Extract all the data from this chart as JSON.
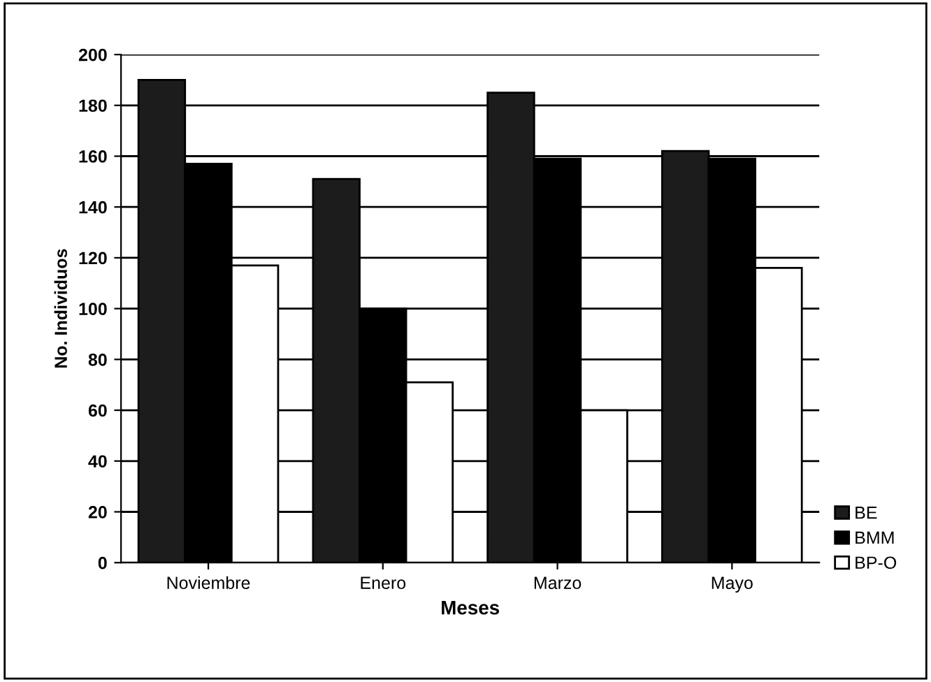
{
  "chart_data": {
    "type": "bar",
    "xlabel": "Meses",
    "ylabel": "No. Individuos",
    "categories": [
      "Noviembre",
      "Enero",
      "Marzo",
      "Mayo"
    ],
    "series": [
      {
        "name": "BE",
        "color": "#1c1c1c",
        "values": [
          190,
          151,
          185,
          162
        ]
      },
      {
        "name": "BMM",
        "color": "#000000",
        "values": [
          157,
          100,
          159,
          159
        ]
      },
      {
        "name": "BP-O",
        "color": "#ffffff",
        "values": [
          117,
          71,
          60,
          116
        ]
      }
    ],
    "ylim": [
      0,
      200
    ],
    "yticks": [
      0,
      20,
      40,
      60,
      80,
      100,
      120,
      140,
      160,
      180,
      200
    ],
    "grid": "y",
    "legend": "bottom right"
  }
}
